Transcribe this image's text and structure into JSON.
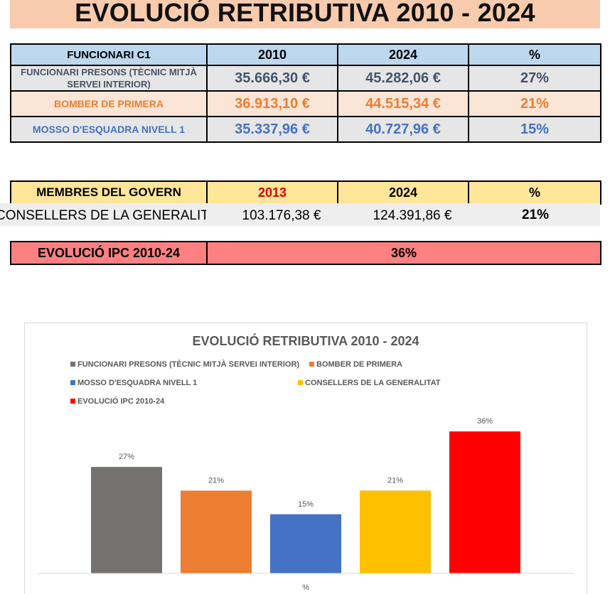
{
  "page_title": "EVOLUCIÓ RETRIBUTIVA 2010 - 2024",
  "table1": {
    "headers": [
      "FUNCIONARI C1",
      "2010",
      "2024",
      "%"
    ],
    "rows": [
      {
        "label": "FUNCIONARI PRESONS (TÈCNIC MITJÀ SERVEI INTERIOR)",
        "v2010": "35.666,30 €",
        "v2024": "45.282,06 €",
        "pct": "27%"
      },
      {
        "label": "BOMBER DE PRIMERA",
        "v2010": "36.913,10 €",
        "v2024": "44.515,34 €",
        "pct": "21%"
      },
      {
        "label": "MOSSO D'ESQUADRA NIVELL 1",
        "v2010": "35.337,96 €",
        "v2024": "40.727,96 €",
        "pct": "15%"
      }
    ]
  },
  "table2": {
    "headers": [
      "MEMBRES DEL GOVERN",
      "2013",
      "2024",
      "%"
    ],
    "row": {
      "label": "CONSELLERS DE LA GENERALITAT",
      "v2013": "103.176,38 €",
      "v2024": "124.391,86 €",
      "pct": "21%"
    }
  },
  "table3": {
    "label": "EVOLUCIÓ IPC 2010-24",
    "value": "36%"
  },
  "chart_data": {
    "type": "bar",
    "title": "EVOLUCIÓ RETRIBUTIVA 2010 - 2024",
    "xlabel": "%",
    "ylabel": "",
    "categories": [
      "%"
    ],
    "ylim": [
      0,
      40
    ],
    "grid": false,
    "legend_position": "top",
    "series": [
      {
        "name": "FUNCIONARI PRESONS (TÈCNIC MITJÀ SERVEI INTERIOR)",
        "value": 27,
        "label": "27%",
        "color": "#767171"
      },
      {
        "name": "BOMBER DE PRIMERA",
        "value": 21,
        "label": "21%",
        "color": "#ed7d31"
      },
      {
        "name": "MOSSO D'ESQUADRA NIVELL 1",
        "value": 15,
        "label": "15%",
        "color": "#4472c4"
      },
      {
        "name": "CONSELLERS DE LA GENERALITAT",
        "value": 21,
        "label": "21%",
        "color": "#ffc000"
      },
      {
        "name": "EVOLUCIÓ IPC 2010-24",
        "value": 36,
        "label": "36%",
        "color": "#ff0000"
      }
    ]
  }
}
